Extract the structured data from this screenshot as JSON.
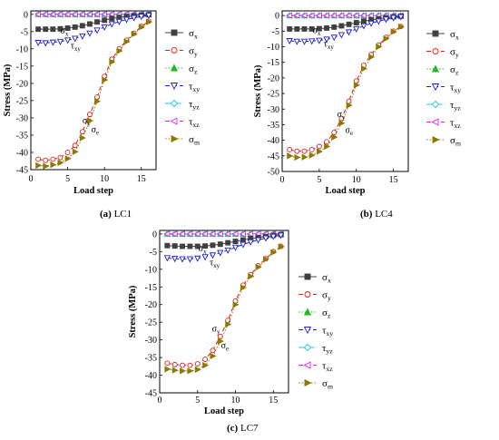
{
  "figure": {
    "panels": [
      {
        "caption_letter": "(a)",
        "caption_text": "LC1"
      },
      {
        "caption_letter": "(b)",
        "caption_text": "LC4"
      },
      {
        "caption_letter": "(c)",
        "caption_text": "LC7"
      }
    ]
  },
  "legend_entries": [
    {
      "sym": "σ",
      "sub": "x",
      "color": "#404040",
      "marker": "square-filled",
      "dash": "solid"
    },
    {
      "sym": "σ",
      "sub": "y",
      "color": "#e41a1c",
      "marker": "circle-open",
      "dash": "dashed"
    },
    {
      "sym": "σ",
      "sub": "z",
      "color": "#22bb22",
      "marker": "triangle-up-filled",
      "dash": "dotted"
    },
    {
      "sym": "τ",
      "sub": "xy",
      "color": "#1f1fd0",
      "marker": "triangle-down-open",
      "dash": "dashed"
    },
    {
      "sym": "τ",
      "sub": "yz",
      "color": "#18c8e0",
      "marker": "diamond-open",
      "dash": "dashdot"
    },
    {
      "sym": "τ",
      "sub": "xz",
      "color": "#e020e0",
      "marker": "triangle-left-open",
      "dash": "dashed"
    },
    {
      "sym": "σ",
      "sub": "m",
      "color": "#8a7a00",
      "marker": "triangle-right-filled",
      "dash": "dotted"
    }
  ],
  "chart_data": [
    {
      "type": "line",
      "panel": "LC1",
      "xlabel": "Load step",
      "ylabel": "Stress (MPa)",
      "xlim": [
        0,
        17
      ],
      "ylim": [
        -45,
        1
      ],
      "xticks": [
        0,
        5,
        10,
        15
      ],
      "yticks": [
        0,
        -5,
        -10,
        -15,
        -20,
        -25,
        -30,
        -35,
        -40,
        -45
      ],
      "legend_position": "right",
      "x": [
        1,
        2,
        3,
        4,
        5,
        6,
        7,
        8,
        9,
        10,
        11,
        12,
        13,
        14,
        15,
        16
      ],
      "series": [
        {
          "name": "σx",
          "values": [
            -4.3,
            -4.3,
            -4.3,
            -4.2,
            -4.0,
            -3.7,
            -3.3,
            -2.8,
            -2.2,
            -1.7,
            -1.2,
            -0.9,
            -0.6,
            -0.4,
            -0.2,
            -0.1
          ]
        },
        {
          "name": "σy",
          "values": [
            -42.0,
            -42.3,
            -42.0,
            -41.5,
            -40.0,
            -38.0,
            -34.0,
            -29.0,
            -24.0,
            -18.0,
            -13.0,
            -10.0,
            -7.5,
            -5.5,
            -3.5,
            -2.0
          ]
        },
        {
          "name": "σz",
          "values": [
            0,
            0,
            0,
            0,
            0,
            0,
            0,
            0,
            0,
            0,
            0,
            0,
            0,
            0,
            0,
            0
          ]
        },
        {
          "name": "τxy",
          "values": [
            -8.2,
            -8.3,
            -8.1,
            -7.9,
            -7.5,
            -7.0,
            -6.3,
            -5.5,
            -4.6,
            -3.7,
            -2.8,
            -2.1,
            -1.5,
            -1.0,
            -0.6,
            -0.3
          ]
        },
        {
          "name": "τyz",
          "values": [
            0,
            0,
            0,
            0,
            0,
            0,
            0,
            0,
            0,
            0,
            0,
            0,
            0,
            0,
            0,
            0
          ]
        },
        {
          "name": "τxz",
          "values": [
            0,
            0,
            0,
            0,
            0,
            0,
            0,
            0,
            0,
            0,
            0,
            0,
            0,
            0,
            0,
            0
          ]
        },
        {
          "name": "σm",
          "values": [
            -43.8,
            -44.0,
            -43.6,
            -43.0,
            -41.8,
            -39.8,
            -35.8,
            -30.8,
            -25.2,
            -19.0,
            -13.8,
            -10.6,
            -7.9,
            -5.7,
            -3.7,
            -2.2
          ]
        }
      ],
      "annotations": [
        {
          "sym": "σ",
          "sub": "x",
          "at": [
            4.0,
            -5.6
          ]
        },
        {
          "sym": "τ",
          "sub": "xy",
          "at": [
            5.4,
            -9.9
          ]
        },
        {
          "sym": "σ",
          "sub": "y",
          "at": [
            7.0,
            -31.6
          ]
        },
        {
          "sym": "σ",
          "sub": "e",
          "at": [
            8.2,
            -34.2
          ]
        }
      ]
    },
    {
      "type": "line",
      "panel": "LC4",
      "xlabel": "Load step",
      "ylabel": "Stress (MPa)",
      "xlim": [
        0,
        17
      ],
      "ylim": [
        -50,
        1.5
      ],
      "xticks": [
        0,
        5,
        10,
        15
      ],
      "yticks": [
        0,
        -5,
        -10,
        -15,
        -20,
        -25,
        -30,
        -35,
        -40,
        -45,
        -50
      ],
      "legend_position": "right",
      "x": [
        1,
        2,
        3,
        4,
        5,
        6,
        7,
        8,
        9,
        10,
        11,
        12,
        13,
        14,
        15,
        16
      ],
      "series": [
        {
          "name": "σx",
          "values": [
            -4.3,
            -4.3,
            -4.3,
            -4.3,
            -4.2,
            -4.0,
            -3.7,
            -3.3,
            -2.8,
            -2.3,
            -1.8,
            -1.4,
            -1.0,
            -0.7,
            -0.4,
            -0.2
          ]
        },
        {
          "name": "σy",
          "values": [
            -43.0,
            -43.5,
            -43.5,
            -43.0,
            -42.0,
            -40.5,
            -37.5,
            -33.0,
            -27.5,
            -21.0,
            -16.0,
            -12.5,
            -9.5,
            -7.0,
            -5.0,
            -3.5
          ]
        },
        {
          "name": "σz",
          "values": [
            0,
            0,
            0,
            0,
            0,
            0,
            0,
            0,
            0,
            0,
            0,
            0,
            0,
            0,
            0,
            0
          ]
        },
        {
          "name": "τxy",
          "values": [
            -8.1,
            -8.3,
            -8.3,
            -8.2,
            -8.0,
            -7.6,
            -7.0,
            -6.2,
            -5.3,
            -4.3,
            -3.3,
            -2.5,
            -1.8,
            -1.2,
            -0.7,
            -0.4
          ]
        },
        {
          "name": "τyz",
          "values": [
            0,
            0,
            0,
            0,
            0,
            0,
            0,
            0,
            0,
            0,
            0,
            0,
            0,
            0,
            0,
            0
          ]
        },
        {
          "name": "τxz",
          "values": [
            0,
            0,
            0,
            0,
            0,
            0,
            0,
            0,
            0,
            0,
            0,
            0,
            0,
            0,
            0,
            0
          ]
        },
        {
          "name": "σm",
          "values": [
            -45.0,
            -45.5,
            -45.4,
            -44.8,
            -43.6,
            -42.0,
            -39.0,
            -34.5,
            -28.8,
            -22.3,
            -17.0,
            -13.3,
            -10.0,
            -7.4,
            -5.2,
            -3.6
          ]
        }
      ],
      "annotations": [
        {
          "sym": "σ",
          "sub": "x",
          "at": [
            4.1,
            -5.7
          ]
        },
        {
          "sym": "τ",
          "sub": "xy",
          "at": [
            5.6,
            -10.0
          ]
        },
        {
          "sym": "σ",
          "sub": "y",
          "at": [
            7.4,
            -32.6
          ]
        },
        {
          "sym": "σ",
          "sub": "e",
          "at": [
            8.5,
            -37.6
          ]
        }
      ]
    },
    {
      "type": "line",
      "panel": "LC7",
      "xlabel": "Load step",
      "ylabel": "Stress (MPa)",
      "xlim": [
        0,
        17
      ],
      "ylim": [
        -45,
        1
      ],
      "xticks": [
        0,
        5,
        10,
        15
      ],
      "yticks": [
        0,
        -5,
        -10,
        -15,
        -20,
        -25,
        -30,
        -35,
        -40,
        -45
      ],
      "legend_position": "right",
      "x": [
        1,
        2,
        3,
        4,
        5,
        6,
        7,
        8,
        9,
        10,
        11,
        12,
        13,
        14,
        15,
        16
      ],
      "series": [
        {
          "name": "σx",
          "values": [
            -3.3,
            -3.4,
            -3.5,
            -3.5,
            -3.5,
            -3.4,
            -3.2,
            -2.9,
            -2.5,
            -2.1,
            -1.7,
            -1.3,
            -1.0,
            -0.7,
            -0.4,
            -0.2
          ]
        },
        {
          "name": "σy",
          "values": [
            -36.6,
            -37.0,
            -37.2,
            -37.2,
            -36.8,
            -35.5,
            -33.0,
            -29.0,
            -24.5,
            -19.0,
            -14.5,
            -11.5,
            -9.0,
            -7.0,
            -5.0,
            -3.5
          ]
        },
        {
          "name": "σz",
          "values": [
            0,
            0,
            0,
            0,
            0,
            0,
            0,
            0,
            0,
            0,
            0,
            0,
            0,
            0,
            0,
            0
          ]
        },
        {
          "name": "τxy",
          "values": [
            -6.8,
            -7.0,
            -7.1,
            -7.1,
            -6.9,
            -6.5,
            -6.0,
            -5.3,
            -4.6,
            -3.8,
            -3.0,
            -2.3,
            -1.7,
            -1.2,
            -0.7,
            -0.4
          ]
        },
        {
          "name": "τyz",
          "values": [
            0,
            0,
            0,
            0,
            0,
            0,
            0,
            0,
            0,
            0,
            0,
            0,
            0,
            0,
            0,
            0
          ]
        },
        {
          "name": "τxz",
          "values": [
            0,
            0,
            0,
            0,
            0,
            0,
            0,
            0,
            0,
            0,
            0,
            0,
            0,
            0,
            0,
            0
          ]
        },
        {
          "name": "σm",
          "values": [
            -38.3,
            -38.6,
            -38.8,
            -38.8,
            -38.4,
            -37.2,
            -34.6,
            -30.4,
            -25.6,
            -20.0,
            -15.2,
            -12.0,
            -9.4,
            -7.2,
            -5.2,
            -3.6
          ]
        }
      ],
      "annotations": [
        {
          "sym": "σ",
          "sub": "x",
          "at": [
            5.1,
            -4.9
          ]
        },
        {
          "sym": "τ",
          "sub": "xy",
          "at": [
            6.6,
            -8.9
          ]
        },
        {
          "sym": "σ",
          "sub": "y",
          "at": [
            6.9,
            -27.6
          ]
        },
        {
          "sym": "σ",
          "sub": "e",
          "at": [
            8.1,
            -32.4
          ]
        }
      ]
    }
  ]
}
